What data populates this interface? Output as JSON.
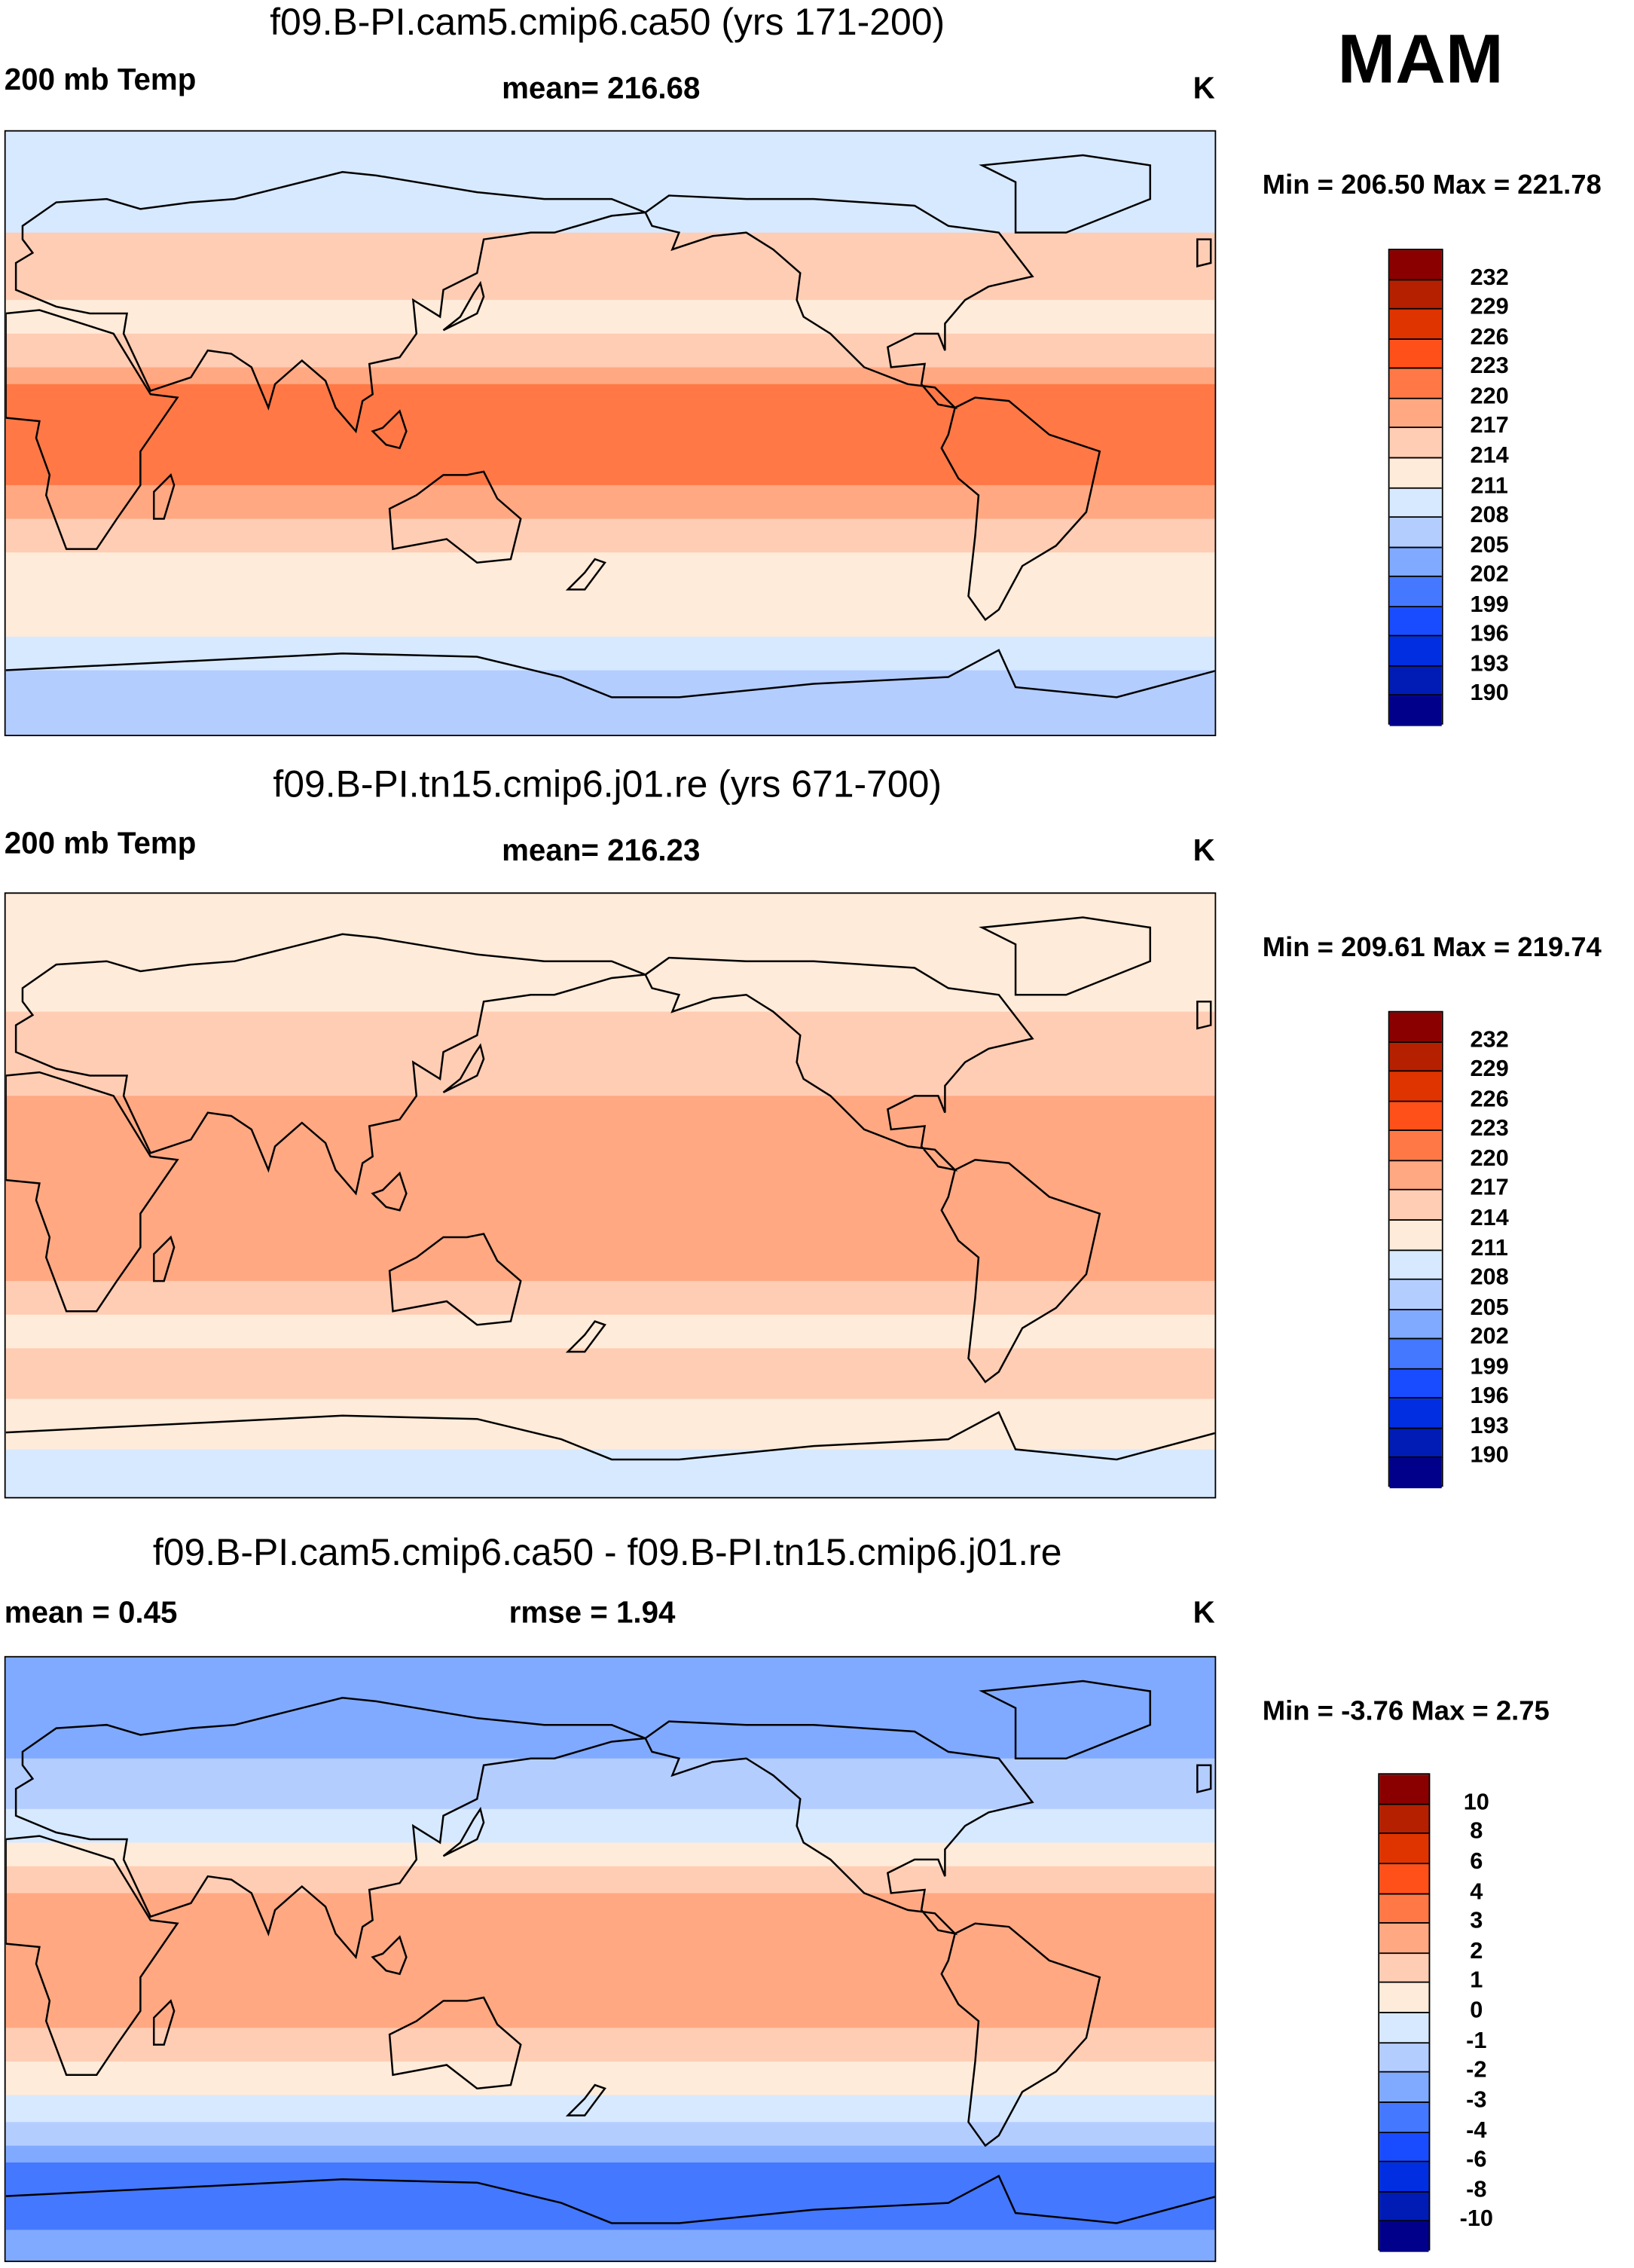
{
  "season": "MAM",
  "colors": [
    "#00008a",
    "#001cb5",
    "#002ee0",
    "#1a4cff",
    "#4478ff",
    "#80aaff",
    "#b4cdff",
    "#d7e9ff",
    "#ffebd9",
    "#ffcdb4",
    "#ffa882",
    "#ff7845",
    "#ff5019",
    "#e03400",
    "#b52000",
    "#8a0000"
  ],
  "panels": [
    {
      "title": "f09.B-PI.cam5.cmip6.ca50 (yrs 171-200)",
      "left": "200 mb Temp",
      "center": "mean= 216.68",
      "units": "K",
      "minmax": "Min = 206.50 Max = 221.78",
      "levels": [
        "232",
        "229",
        "226",
        "223",
        "220",
        "217",
        "214",
        "211",
        "208",
        "205",
        "202",
        "199",
        "196",
        "193",
        "190"
      ]
    },
    {
      "title": "f09.B-PI.tn15.cmip6.j01.re (yrs 671-700)",
      "left": "200 mb Temp",
      "center": "mean= 216.23",
      "units": "K",
      "minmax": "Min = 209.61 Max = 219.74",
      "levels": [
        "232",
        "229",
        "226",
        "223",
        "220",
        "217",
        "214",
        "211",
        "208",
        "205",
        "202",
        "199",
        "196",
        "193",
        "190"
      ]
    },
    {
      "title": "f09.B-PI.cam5.cmip6.ca50 - f09.B-PI.tn15.cmip6.j01.re",
      "left": "mean =   0.45",
      "center": "rmse =   1.94",
      "units": "K",
      "minmax": "Min =  -3.76 Max =   2.75",
      "levels": [
        "10",
        "8",
        "6",
        "4",
        "3",
        "2",
        "1",
        "0",
        "-1",
        "-2",
        "-3",
        "-4",
        "-6",
        "-8",
        "-10"
      ]
    }
  ],
  "chart_data": {
    "type": "heatmap",
    "projection": "cylindrical-equidistant, lon 0-360, lat -90 to 90",
    "zonal_bands_color_index": [
      [
        [
          90,
          60,
          7
        ],
        [
          60,
          40,
          9
        ],
        [
          40,
          30,
          8
        ],
        [
          30,
          20,
          9
        ],
        [
          20,
          15,
          10
        ],
        [
          15,
          -15,
          11
        ],
        [
          -15,
          -25,
          10
        ],
        [
          -25,
          -35,
          9
        ],
        [
          -35,
          -60,
          8
        ],
        [
          -60,
          -70,
          7
        ],
        [
          -70,
          -90,
          6
        ]
      ],
      [
        [
          90,
          55,
          8
        ],
        [
          55,
          30,
          9
        ],
        [
          30,
          -25,
          10
        ],
        [
          -25,
          -35,
          9
        ],
        [
          -35,
          -45,
          8
        ],
        [
          -45,
          -60,
          9
        ],
        [
          -60,
          -75,
          8
        ],
        [
          -75,
          -90,
          7
        ]
      ],
      [
        [
          90,
          60,
          5
        ],
        [
          60,
          45,
          6
        ],
        [
          45,
          35,
          7
        ],
        [
          35,
          28,
          8
        ],
        [
          28,
          20,
          9
        ],
        [
          20,
          -20,
          10
        ],
        [
          -20,
          -30,
          9
        ],
        [
          -30,
          -40,
          8
        ],
        [
          -40,
          -48,
          7
        ],
        [
          -48,
          -55,
          6
        ],
        [
          -55,
          -60,
          5
        ],
        [
          -60,
          -80,
          4
        ],
        [
          -80,
          -90,
          5
        ]
      ]
    ]
  }
}
